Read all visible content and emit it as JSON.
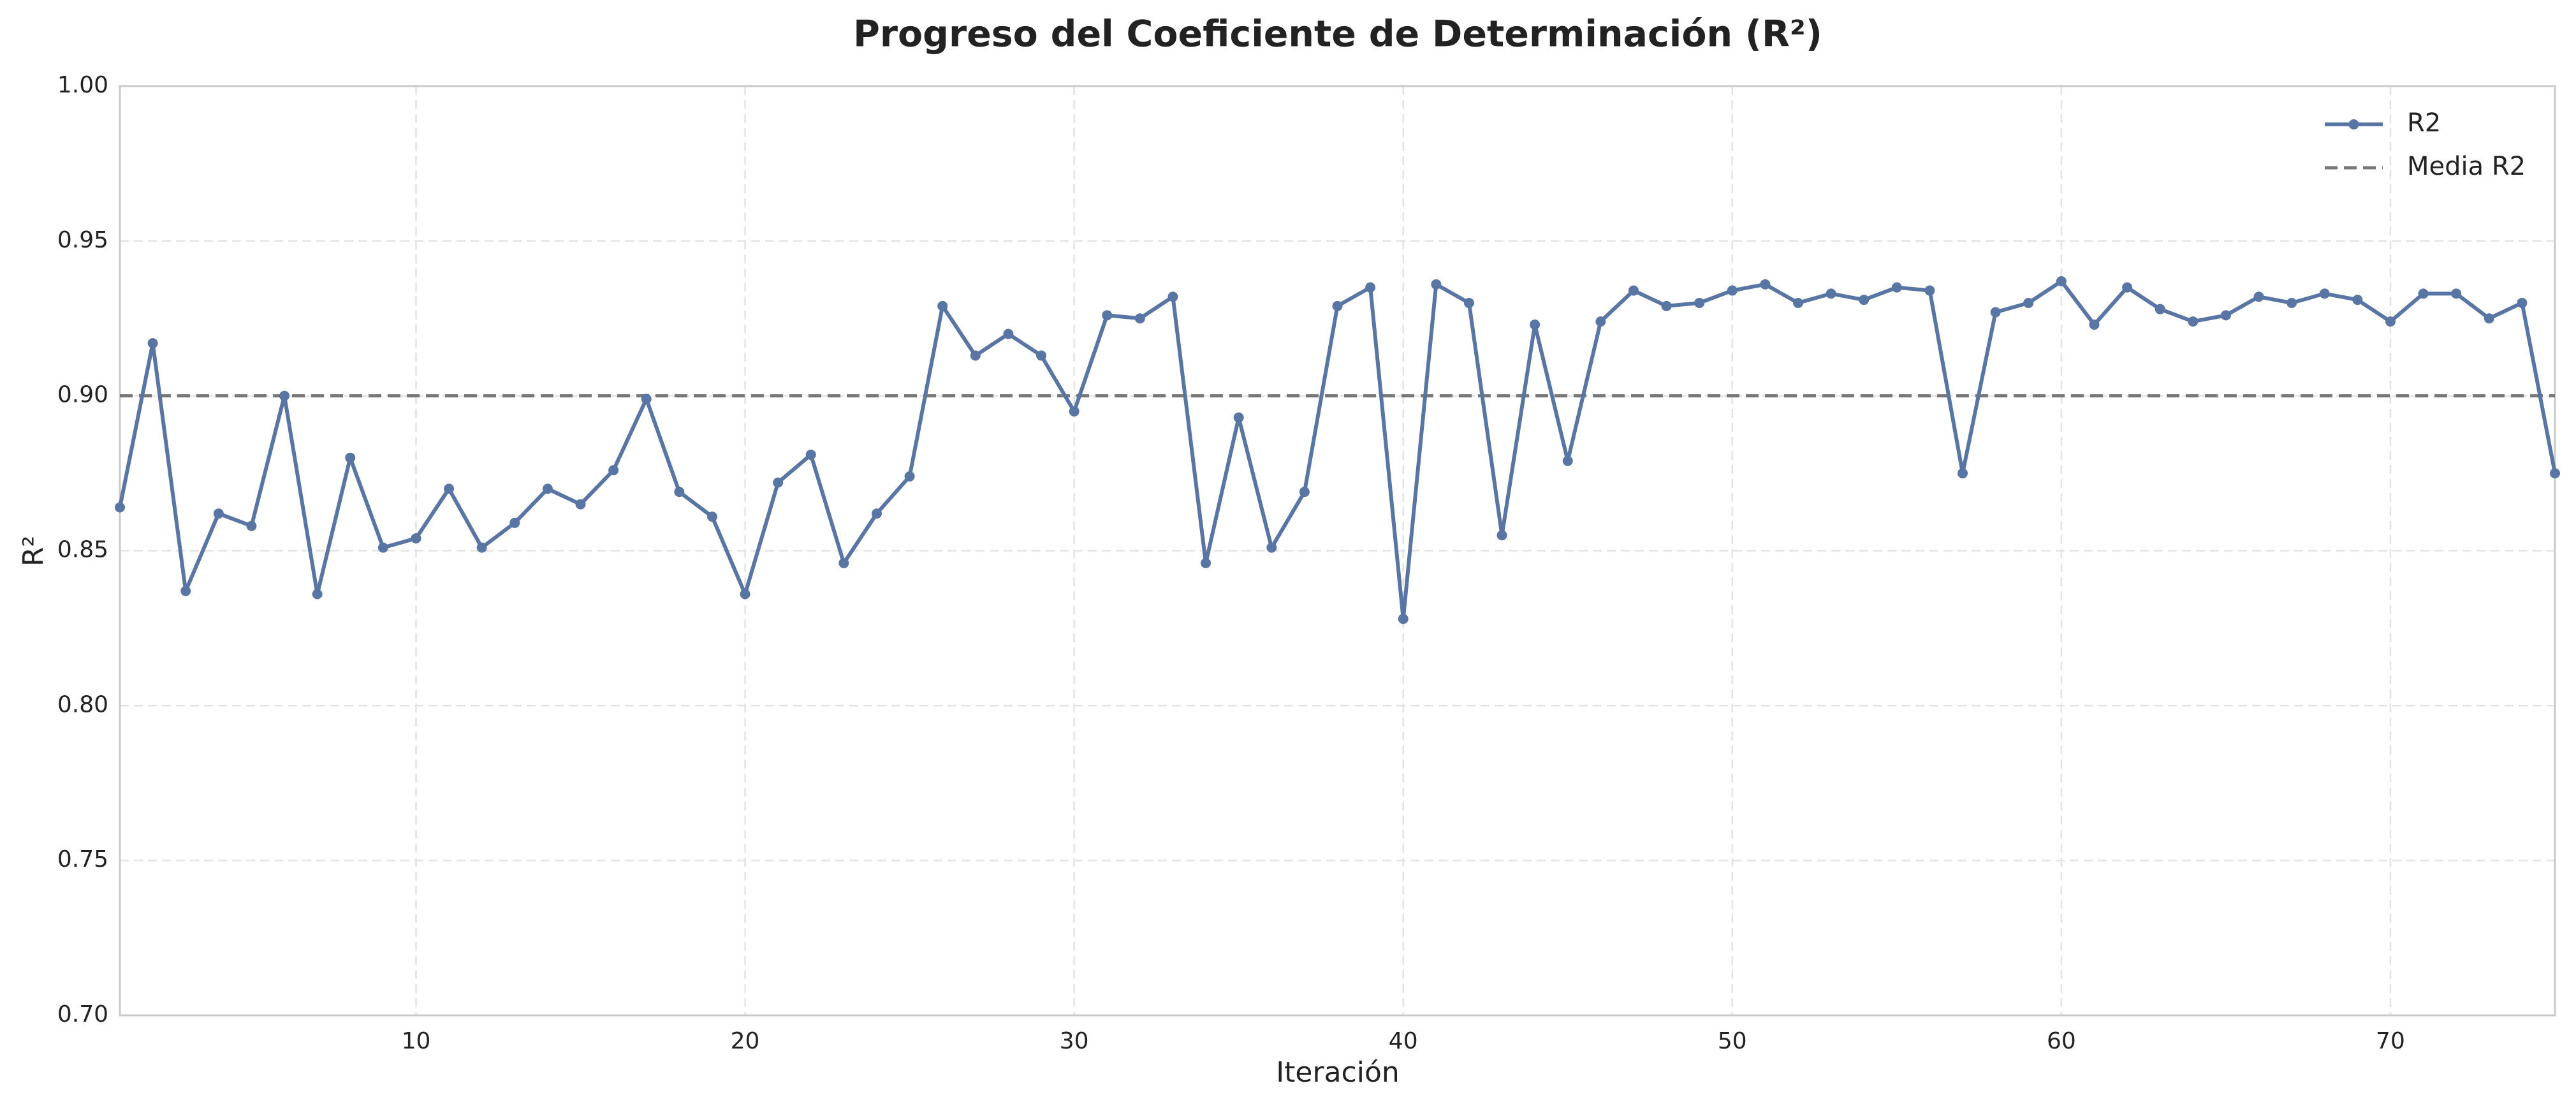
{
  "chart_data": {
    "type": "line",
    "title": "Progreso del Coeficiente de Determinación (R²)",
    "x_label": "Iteración",
    "y_label": "R²",
    "x": [
      1,
      2,
      3,
      4,
      5,
      6,
      7,
      8,
      9,
      10,
      11,
      12,
      13,
      14,
      15,
      16,
      17,
      18,
      19,
      20,
      21,
      22,
      23,
      24,
      25,
      26,
      27,
      28,
      29,
      30,
      31,
      32,
      33,
      34,
      35,
      36,
      37,
      38,
      39,
      40,
      41,
      42,
      43,
      44,
      45,
      46,
      47,
      48,
      49,
      50,
      51,
      52,
      53,
      54,
      55,
      56,
      57,
      58,
      59,
      60,
      61,
      62,
      63,
      64,
      65,
      66,
      67,
      68,
      69,
      70,
      71,
      72,
      73,
      74,
      75
    ],
    "series": [
      {
        "name": "R2",
        "color": "#5875a4",
        "values": [
          0.864,
          0.917,
          0.837,
          0.862,
          0.858,
          0.9,
          0.836,
          0.88,
          0.851,
          0.854,
          0.87,
          0.851,
          0.859,
          0.87,
          0.865,
          0.876,
          0.899,
          0.869,
          0.861,
          0.836,
          0.872,
          0.881,
          0.846,
          0.862,
          0.874,
          0.929,
          0.913,
          0.92,
          0.913,
          0.895,
          0.926,
          0.925,
          0.932,
          0.846,
          0.893,
          0.851,
          0.869,
          0.929,
          0.935,
          0.828,
          0.936,
          0.93,
          0.855,
          0.923,
          0.879,
          0.924,
          0.934,
          0.929,
          0.93,
          0.934,
          0.936,
          0.93,
          0.933,
          0.931,
          0.935,
          0.934,
          0.875,
          0.927,
          0.93,
          0.937,
          0.923,
          0.935,
          0.928,
          0.924,
          0.926,
          0.932,
          0.93,
          0.933,
          0.931,
          0.924,
          0.933,
          0.933,
          0.925,
          0.93,
          0.875
        ]
      }
    ],
    "mean_line": {
      "name": "Media R2",
      "value": 0.9,
      "color": "#777777"
    },
    "xlim": [
      1,
      75
    ],
    "xticks": [
      10,
      20,
      30,
      40,
      50,
      60,
      70
    ],
    "ylim": [
      0.7,
      1.0
    ],
    "yticks": [
      {
        "value": 0.7,
        "label": "0.70"
      },
      {
        "value": 0.75,
        "label": "0.75"
      },
      {
        "value": 0.8,
        "label": "0.80"
      },
      {
        "value": 0.85,
        "label": "0.85"
      },
      {
        "value": 0.9,
        "label": "0.90"
      },
      {
        "value": 0.95,
        "label": "0.95"
      },
      {
        "value": 1.0,
        "label": "1.00"
      }
    ],
    "grid": true,
    "legend": "upper right"
  }
}
